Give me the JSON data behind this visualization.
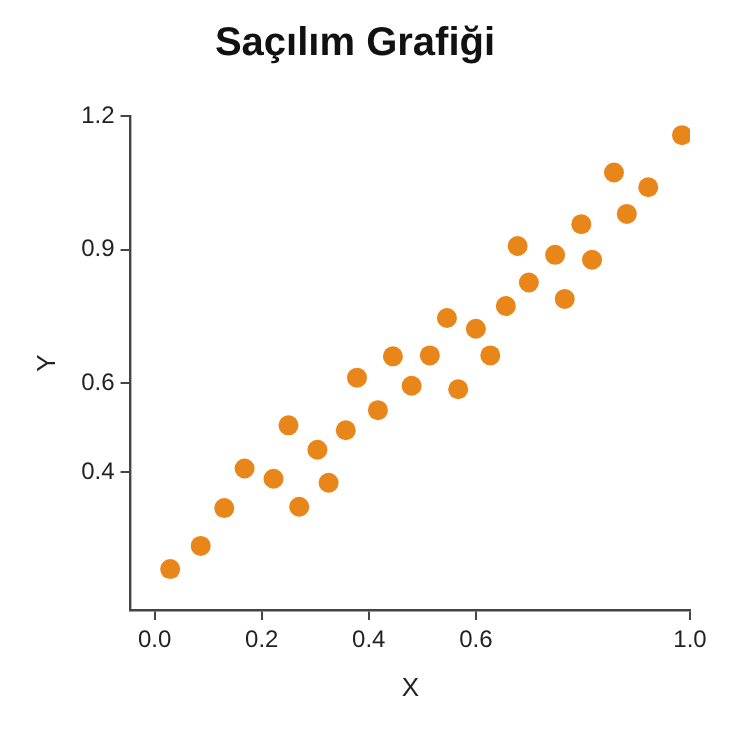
{
  "chart_data": {
    "type": "scatter",
    "title": "Saçılım Grafiği",
    "xlabel": "X",
    "ylabel": "Y",
    "color": "#e8861a",
    "marker": "circle",
    "grid": false,
    "legend": false,
    "x": [
      0.029,
      0.086,
      0.13,
      0.168,
      0.222,
      0.25,
      0.27,
      0.304,
      0.325,
      0.357,
      0.378,
      0.417,
      0.445,
      0.48,
      0.514,
      0.546,
      0.567,
      0.6,
      0.627,
      0.656,
      0.678,
      0.699,
      0.748,
      0.766,
      0.797,
      0.817,
      0.858,
      0.882,
      0.922,
      0.985
    ],
    "values": [
      0.182,
      0.234,
      0.319,
      0.408,
      0.385,
      0.505,
      0.322,
      0.45,
      0.376,
      0.494,
      0.612,
      0.539,
      0.66,
      0.594,
      0.662,
      0.746,
      0.586,
      0.722,
      0.662,
      0.773,
      0.908,
      0.826,
      0.888,
      0.789,
      0.957,
      0.877,
      1.073,
      0.98,
      1.04,
      1.157
    ],
    "xlim": [
      -0.045,
      1.0
    ],
    "xticks": [
      {
        "value": 0,
        "label": "0.0"
      },
      0.2,
      0.4,
      0.6,
      {
        "value": 1,
        "label": "1.0"
      }
    ],
    "ylim": [
      0.09,
      1.2
    ],
    "yticks": [
      0.4,
      0.6,
      0.9,
      1.2
    ]
  }
}
